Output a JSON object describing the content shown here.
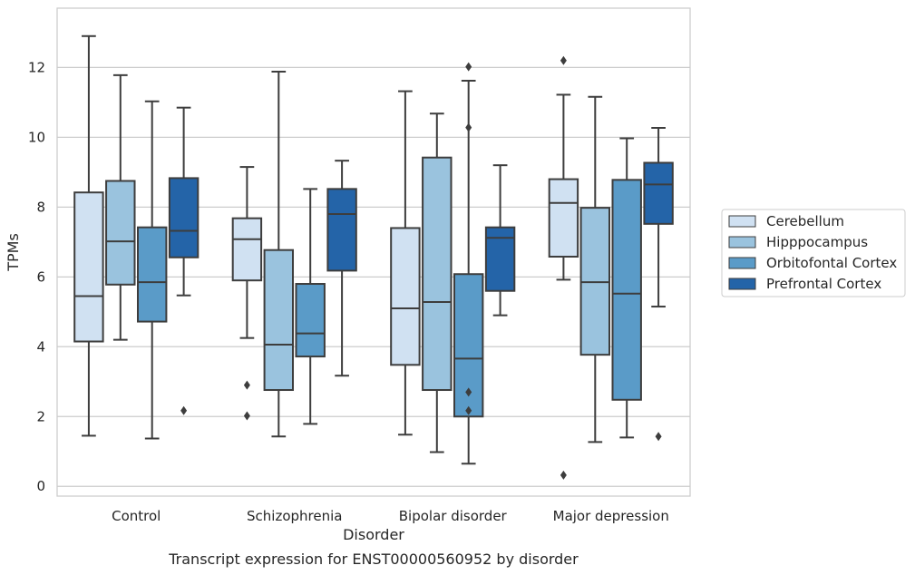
{
  "chart_data": {
    "type": "box",
    "title": "",
    "caption": "Transcript expression for ENST00000560952 by disorder",
    "xlabel": "Disorder",
    "ylabel": "TPMs",
    "ylim": [
      -0.28,
      13.7
    ],
    "yticks": [
      0,
      2,
      4,
      6,
      8,
      10,
      12
    ],
    "grid": "horizontal",
    "legend_position": "right",
    "categories": [
      "Control",
      "Schizophrenia",
      "Bipolar disorder",
      "Major depression"
    ],
    "series": [
      {
        "name": "Cerebellum",
        "color": "#d0e1f2",
        "boxes": [
          {
            "whisker_low": 1.45,
            "q1": 4.15,
            "median": 5.45,
            "q3": 8.42,
            "whisker_high": 12.9,
            "outliers": []
          },
          {
            "whisker_low": 4.25,
            "q1": 5.9,
            "median": 7.08,
            "q3": 7.68,
            "whisker_high": 9.15,
            "outliers": [
              2.9,
              2.02
            ]
          },
          {
            "whisker_low": 1.48,
            "q1": 3.48,
            "median": 5.1,
            "q3": 7.4,
            "whisker_high": 11.32,
            "outliers": []
          },
          {
            "whisker_low": 5.92,
            "q1": 6.58,
            "median": 8.12,
            "q3": 8.8,
            "whisker_high": 11.22,
            "outliers": [
              12.2,
              0.32
            ]
          }
        ]
      },
      {
        "name": "Hipppocampus",
        "color": "#9ac3de",
        "boxes": [
          {
            "whisker_low": 4.2,
            "q1": 5.78,
            "median": 7.02,
            "q3": 8.75,
            "whisker_high": 11.78,
            "outliers": []
          },
          {
            "whisker_low": 1.43,
            "q1": 2.76,
            "median": 4.06,
            "q3": 6.77,
            "whisker_high": 11.88,
            "outliers": []
          },
          {
            "whisker_low": 0.98,
            "q1": 2.76,
            "median": 5.28,
            "q3": 9.42,
            "whisker_high": 10.68,
            "outliers": []
          },
          {
            "whisker_low": 1.27,
            "q1": 3.77,
            "median": 5.85,
            "q3": 7.98,
            "whisker_high": 11.16,
            "outliers": []
          }
        ]
      },
      {
        "name": "Orbitofontal Cortex",
        "color": "#5a9bc8",
        "boxes": [
          {
            "whisker_low": 1.37,
            "q1": 4.72,
            "median": 5.85,
            "q3": 7.42,
            "whisker_high": 11.03,
            "outliers": []
          },
          {
            "whisker_low": 1.79,
            "q1": 3.72,
            "median": 4.38,
            "q3": 5.8,
            "whisker_high": 8.52,
            "outliers": []
          },
          {
            "whisker_low": 0.65,
            "q1": 2.0,
            "median": 3.66,
            "q3": 6.08,
            "whisker_high": 11.62,
            "outliers": [
              12.02,
              10.28,
              2.7,
              2.17
            ]
          },
          {
            "whisker_low": 1.4,
            "q1": 2.48,
            "median": 5.52,
            "q3": 8.78,
            "whisker_high": 9.97,
            "outliers": []
          }
        ]
      },
      {
        "name": "Prefrontal Cortex",
        "color": "#2464a8",
        "boxes": [
          {
            "whisker_low": 5.47,
            "q1": 6.56,
            "median": 7.32,
            "q3": 8.83,
            "whisker_high": 10.85,
            "outliers": [
              2.17
            ]
          },
          {
            "whisker_low": 3.17,
            "q1": 6.18,
            "median": 7.8,
            "q3": 8.52,
            "whisker_high": 9.33,
            "outliers": []
          },
          {
            "whisker_low": 4.9,
            "q1": 5.6,
            "median": 7.12,
            "q3": 7.42,
            "whisker_high": 9.2,
            "outliers": []
          },
          {
            "whisker_low": 5.15,
            "q1": 7.52,
            "median": 8.65,
            "q3": 9.27,
            "whisker_high": 10.27,
            "outliers": [
              1.43
            ]
          }
        ]
      }
    ]
  }
}
